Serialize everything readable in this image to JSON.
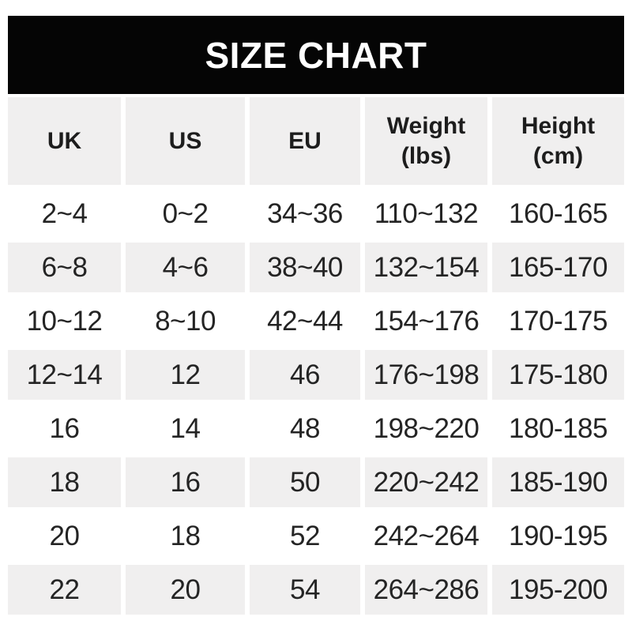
{
  "banner": {
    "title": "SIZE CHART"
  },
  "colors": {
    "banner_bg": "#050505",
    "banner_text": "#ffffff",
    "row_alt_bg": "#f0efef",
    "row_bg": "#ffffff",
    "text": "#242424"
  },
  "table": {
    "columns": [
      {
        "label": "UK",
        "sub": ""
      },
      {
        "label": "US",
        "sub": ""
      },
      {
        "label": "EU",
        "sub": ""
      },
      {
        "label": "Weight",
        "sub": "(lbs)"
      },
      {
        "label": "Height",
        "sub": "(cm)"
      }
    ],
    "rows": [
      [
        "2~4",
        "0~2",
        "34~36",
        "110~132",
        "160-165"
      ],
      [
        "6~8",
        "4~6",
        "38~40",
        "132~154",
        "165-170"
      ],
      [
        "10~12",
        "8~10",
        "42~44",
        "154~176",
        "170-175"
      ],
      [
        "12~14",
        "12",
        "46",
        "176~198",
        "175-180"
      ],
      [
        "16",
        "14",
        "48",
        "198~220",
        "180-185"
      ],
      [
        "18",
        "16",
        "50",
        "220~242",
        "185-190"
      ],
      [
        "20",
        "18",
        "52",
        "242~264",
        "190-195"
      ],
      [
        "22",
        "20",
        "54",
        "264~286",
        "195-200"
      ]
    ]
  },
  "chart_data": {
    "type": "table",
    "title": "SIZE CHART",
    "columns": [
      "UK",
      "US",
      "EU",
      "Weight (lbs)",
      "Height (cm)"
    ],
    "rows": [
      [
        "2~4",
        "0~2",
        "34~36",
        "110~132",
        "160-165"
      ],
      [
        "6~8",
        "4~6",
        "38~40",
        "132~154",
        "165-170"
      ],
      [
        "10~12",
        "8~10",
        "42~44",
        "154~176",
        "170-175"
      ],
      [
        "12~14",
        "12",
        "46",
        "176~198",
        "175-180"
      ],
      [
        "16",
        "14",
        "48",
        "198~220",
        "180-185"
      ],
      [
        "18",
        "16",
        "50",
        "220~242",
        "185-190"
      ],
      [
        "20",
        "18",
        "52",
        "242~264",
        "190-195"
      ],
      [
        "22",
        "20",
        "54",
        "264~286",
        "195-200"
      ]
    ]
  }
}
